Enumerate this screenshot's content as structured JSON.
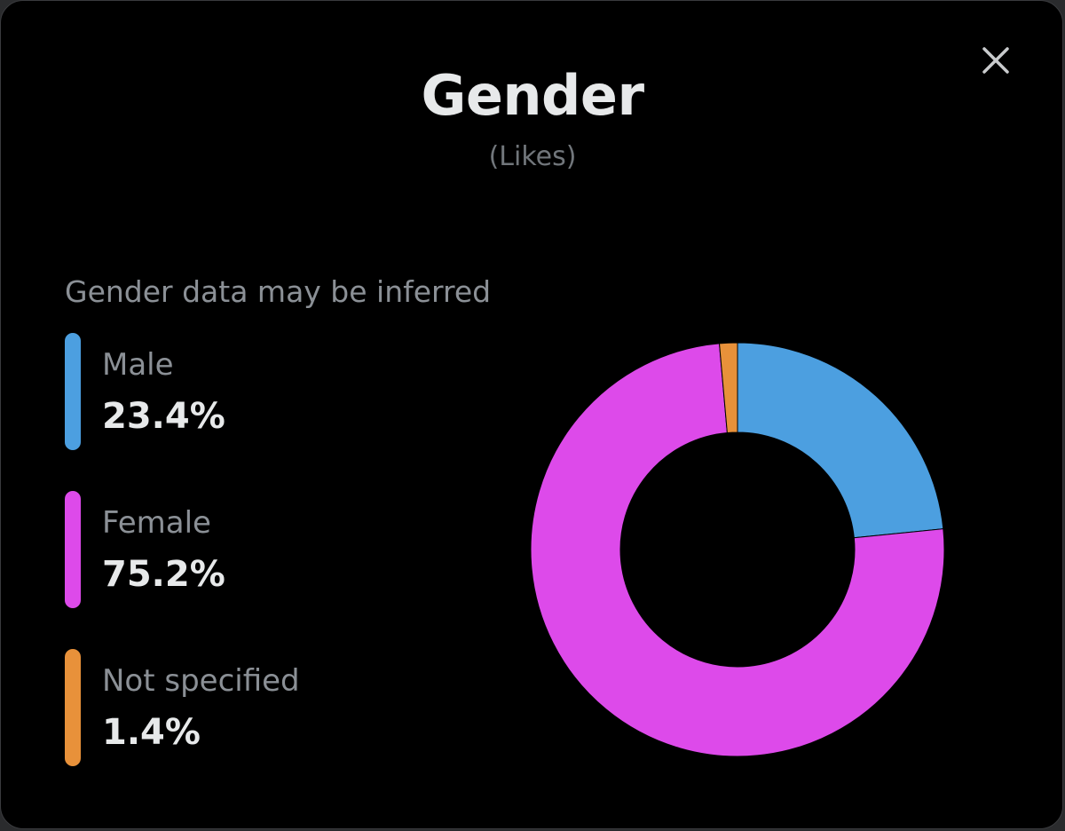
{
  "modal": {
    "title": "Gender",
    "subtitle": "(Likes)",
    "note": "Gender data may be inferred",
    "close_icon": "close-icon"
  },
  "colors": {
    "background": "#000000",
    "male": "#4c9fe0",
    "female": "#dd4aea",
    "not_specified": "#e8913a"
  },
  "chart_data": {
    "type": "pie",
    "title": "Gender",
    "subtitle": "(Likes)",
    "donut": true,
    "categories": [
      "Male",
      "Female",
      "Not specified"
    ],
    "values": [
      23.4,
      75.2,
      1.4
    ],
    "labels": [
      "23.4%",
      "75.2%",
      "1.4%"
    ],
    "colors": [
      "#4c9fe0",
      "#dd4aea",
      "#e8913a"
    ],
    "legend": "left",
    "start": "top",
    "direction": "clockwise"
  }
}
